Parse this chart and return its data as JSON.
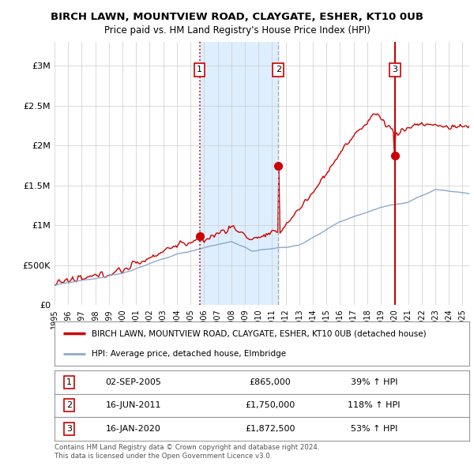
{
  "title": "BIRCH LAWN, MOUNTVIEW ROAD, CLAYGATE, ESHER, KT10 0UB",
  "subtitle": "Price paid vs. HM Land Registry's House Price Index (HPI)",
  "ylabel_ticks": [
    "£0",
    "£500K",
    "£1M",
    "£1.5M",
    "£2M",
    "£2.5M",
    "£3M"
  ],
  "ytick_values": [
    0,
    500000,
    1000000,
    1500000,
    2000000,
    2500000,
    3000000
  ],
  "ylim": [
    0,
    3300000
  ],
  "xlim_start": 1995.0,
  "xlim_end": 2025.5,
  "xtick_years": [
    1995,
    1996,
    1997,
    1998,
    1999,
    2000,
    2001,
    2002,
    2003,
    2004,
    2005,
    2006,
    2007,
    2008,
    2009,
    2010,
    2011,
    2012,
    2013,
    2014,
    2015,
    2016,
    2017,
    2018,
    2019,
    2020,
    2021,
    2022,
    2023,
    2024,
    2025
  ],
  "red_line_color": "#cc0000",
  "blue_line_color": "#88aacc",
  "blue_fill_color": "#ddeeff",
  "vline1_color": "#cc0000",
  "vline1_style": ":",
  "vline2_color": "#aaaaaa",
  "vline2_style": "--",
  "vline3_color": "#cc0000",
  "vline3_style": "-",
  "sale_dates": [
    2005.67,
    2011.46,
    2020.04
  ],
  "sale_prices_red": [
    865000,
    1750000,
    1872500
  ],
  "sale_labels": [
    "1",
    "2",
    "3"
  ],
  "legend_red_label": "BIRCH LAWN, MOUNTVIEW ROAD, CLAYGATE, ESHER, KT10 0UB (detached house)",
  "legend_blue_label": "HPI: Average price, detached house, Elmbridge",
  "table_rows": [
    {
      "num": "1",
      "date": "02-SEP-2005",
      "price": "£865,000",
      "change": "39% ↑ HPI"
    },
    {
      "num": "2",
      "date": "16-JUN-2011",
      "price": "£1,750,000",
      "change": "118% ↑ HPI"
    },
    {
      "num": "3",
      "date": "16-JAN-2020",
      "price": "£1,872,500",
      "change": "53% ↑ HPI"
    }
  ],
  "footnote1": "Contains HM Land Registry data © Crown copyright and database right 2024.",
  "footnote2": "This data is licensed under the Open Government Licence v3.0.",
  "bg_color": "#ffffff",
  "grid_color": "#cccccc"
}
